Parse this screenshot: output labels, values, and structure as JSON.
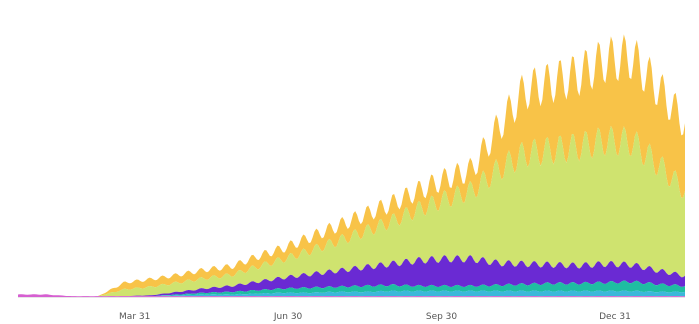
{
  "chart_data": {
    "type": "area",
    "stacked": true,
    "title": "",
    "xlabel": "",
    "ylabel": "",
    "x_ticks": [
      "Mar 31",
      "Jun 30",
      "Sep 30",
      "Dec 31"
    ],
    "y_axis_shown": false,
    "grid": false,
    "legend": "none",
    "weekly_oscillation": true,
    "x": [
      "Jan 20",
      "Feb 1",
      "Feb 15",
      "Mar 1",
      "Mar 15",
      "Mar 31",
      "Apr 15",
      "May 1",
      "May 15",
      "Jun 1",
      "Jun 15",
      "Jun 30",
      "Jul 15",
      "Aug 1",
      "Aug 15",
      "Sep 1",
      "Sep 15",
      "Sep 30",
      "Oct 15",
      "Nov 1",
      "Nov 15",
      "Dec 1",
      "Dec 15",
      "Dec 31",
      "Jan 10",
      "Jan 20"
    ],
    "series": [
      {
        "color": "#d65fd1",
        "values": [
          3,
          3,
          1,
          1,
          1,
          1,
          1,
          1,
          1,
          1,
          1,
          1,
          1,
          1,
          1,
          1,
          1,
          1,
          1,
          1,
          1,
          1,
          1,
          1,
          1,
          1
        ]
      },
      {
        "color": "#3bb8d9",
        "values": [
          0,
          0,
          0,
          0,
          0,
          0,
          1,
          2,
          2,
          3,
          4,
          4,
          5,
          5,
          6,
          6,
          6,
          6,
          6,
          6,
          6,
          6,
          6,
          6,
          5,
          5
        ]
      },
      {
        "color": "#1fbda2",
        "values": [
          0,
          0,
          0,
          0,
          0,
          0,
          1,
          2,
          3,
          4,
          5,
          6,
          6,
          7,
          7,
          6,
          6,
          6,
          7,
          8,
          9,
          9,
          10,
          11,
          9,
          7
        ]
      },
      {
        "color": "#6a2ad3",
        "values": [
          0,
          0,
          0,
          0,
          0,
          1,
          3,
          5,
          7,
          10,
          13,
          16,
          19,
          22,
          25,
          30,
          32,
          32,
          26,
          24,
          22,
          21,
          22,
          20,
          16,
          12
        ]
      },
      {
        "color": "#cfe36f",
        "values": [
          0,
          0,
          0,
          0,
          8,
          10,
          11,
          12,
          13,
          18,
          22,
          28,
          35,
          42,
          50,
          60,
          70,
          80,
          110,
          130,
          135,
          140,
          145,
          145,
          125,
          100
        ]
      },
      {
        "color": "#f8c348",
        "values": [
          0,
          0,
          0,
          0,
          8,
          9,
          9,
          10,
          10,
          12,
          13,
          16,
          18,
          20,
          21,
          22,
          24,
          25,
          50,
          75,
          80,
          85,
          95,
          100,
          90,
          80
        ]
      }
    ],
    "ylim": [
      0,
      310
    ]
  }
}
